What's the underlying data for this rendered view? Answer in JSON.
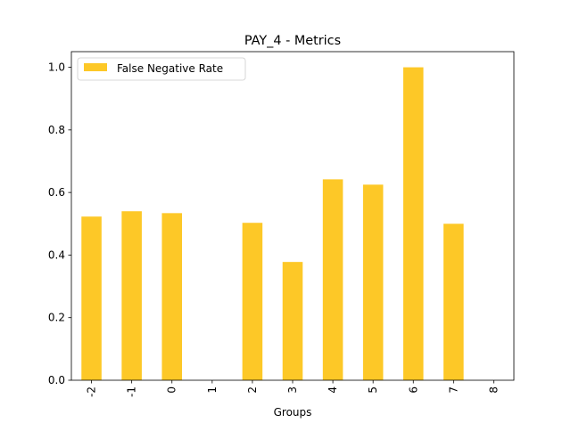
{
  "chart_data": {
    "type": "bar",
    "title": "PAY_4 - Metrics",
    "xlabel": "Groups",
    "ylabel": "",
    "categories": [
      "-2",
      "-1",
      "0",
      "1",
      "2",
      "3",
      "4",
      "5",
      "6",
      "7",
      "8"
    ],
    "series": [
      {
        "name": "False Negative Rate",
        "color": "#FDC827",
        "values": [
          0.523,
          0.54,
          0.534,
          0.0,
          0.503,
          0.378,
          0.642,
          0.625,
          1.0,
          0.5,
          0.0
        ]
      }
    ],
    "ylim": [
      0,
      1.05
    ],
    "yticks": [
      "0.0",
      "0.2",
      "0.4",
      "0.6",
      "0.8",
      "1.0"
    ],
    "grid": false,
    "legend": "top-left"
  }
}
